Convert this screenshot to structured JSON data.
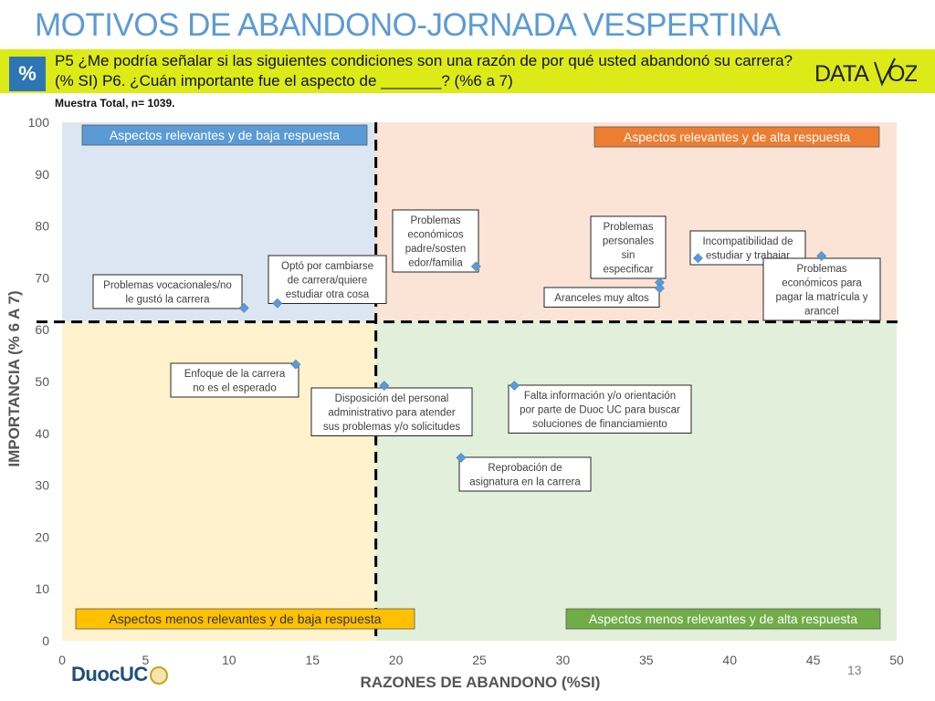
{
  "header": {
    "title": "MOTIVOS DE ABANDONO-JORNADA VESPERTINA",
    "badge": "%",
    "question_line1": "P5 ¿Me podría señalar si las siguientes condiciones son una razón de por qué usted abandonó su carrera?",
    "question_line2": "(% SI) P6. ¿Cuán importante fue el aspecto de _______? (%6 a 7)",
    "logo": "DATA VOZ",
    "sample": "Muestra Total, n= 1039."
  },
  "footer": {
    "page_number": "13",
    "brand_logo": "DuocUC"
  },
  "colors": {
    "title": "#5b9bd5",
    "band": "#dcea18",
    "badge": "#2e75b6",
    "q_top_left": "#dce6f2",
    "q_top_right": "#fbe3d6",
    "q_bottom_left": "#fff2cc",
    "q_bottom_right": "#e2efda",
    "marker": "#5b9bd5",
    "label_top_left": "#5b9bd5",
    "label_top_right": "#ed7d31",
    "label_bottom_left": "#ffc000",
    "label_bottom_right": "#70ad47"
  },
  "chart_data": {
    "type": "scatter",
    "xlabel": "RAZONES DE ABANDONO (%SI)",
    "ylabel": "IMPORTANCIA (% 6 A 7)",
    "xlim": [
      0,
      50
    ],
    "ylim": [
      0,
      100
    ],
    "x_ticks": [
      0,
      5,
      10,
      15,
      20,
      25,
      30,
      35,
      40,
      45,
      50
    ],
    "y_ticks": [
      0,
      10,
      20,
      30,
      40,
      50,
      60,
      70,
      80,
      90,
      100
    ],
    "threshold_x": 18.8,
    "threshold_y": 61.5,
    "quadrants": {
      "top_left": "Aspectos relevantes y de baja respuesta",
      "top_right": "Aspectos relevantes y de alta respuesta",
      "bottom_left": "Aspectos menos relevantes y de baja respuesta",
      "bottom_right": "Aspectos menos relevantes y de alta respuesta"
    },
    "points": [
      {
        "label": "Problemas vocacionales/no le gustó la carrera",
        "x": 10.9,
        "y": 64.2
      },
      {
        "label": "Optó por cambiarse de carrera/quiere estudiar otra cosa",
        "x": 12.9,
        "y": 65.1
      },
      {
        "label": "Problemas económicos padre/sostenedor/familia",
        "x": 24.8,
        "y": 72.2
      },
      {
        "label": "Problemas personales sin especificar",
        "x": 35.8,
        "y": 69.1
      },
      {
        "label": "Aranceles muy altos",
        "x": 35.8,
        "y": 68.0
      },
      {
        "label": "Incompatibilidad de estudiar y trabajar",
        "x": 38.1,
        "y": 73.8
      },
      {
        "label": "Problemas económicos para pagar la matrícula y arancel",
        "x": 45.5,
        "y": 74.2
      },
      {
        "label": "Enfoque de la carrera no es el esperado",
        "x": 14.0,
        "y": 53.3
      },
      {
        "label": "Disposición del personal administrativo para atender sus problemas y/o solicitudes",
        "x": 19.3,
        "y": 49.2
      },
      {
        "label": "Falta información y/o orientación por parte de Duoc UC para buscar soluciones de financiamiento",
        "x": 27.1,
        "y": 49.2
      },
      {
        "label": "Reprobación de asignatura en la carrera",
        "x": 23.9,
        "y": 35.3
      }
    ]
  }
}
